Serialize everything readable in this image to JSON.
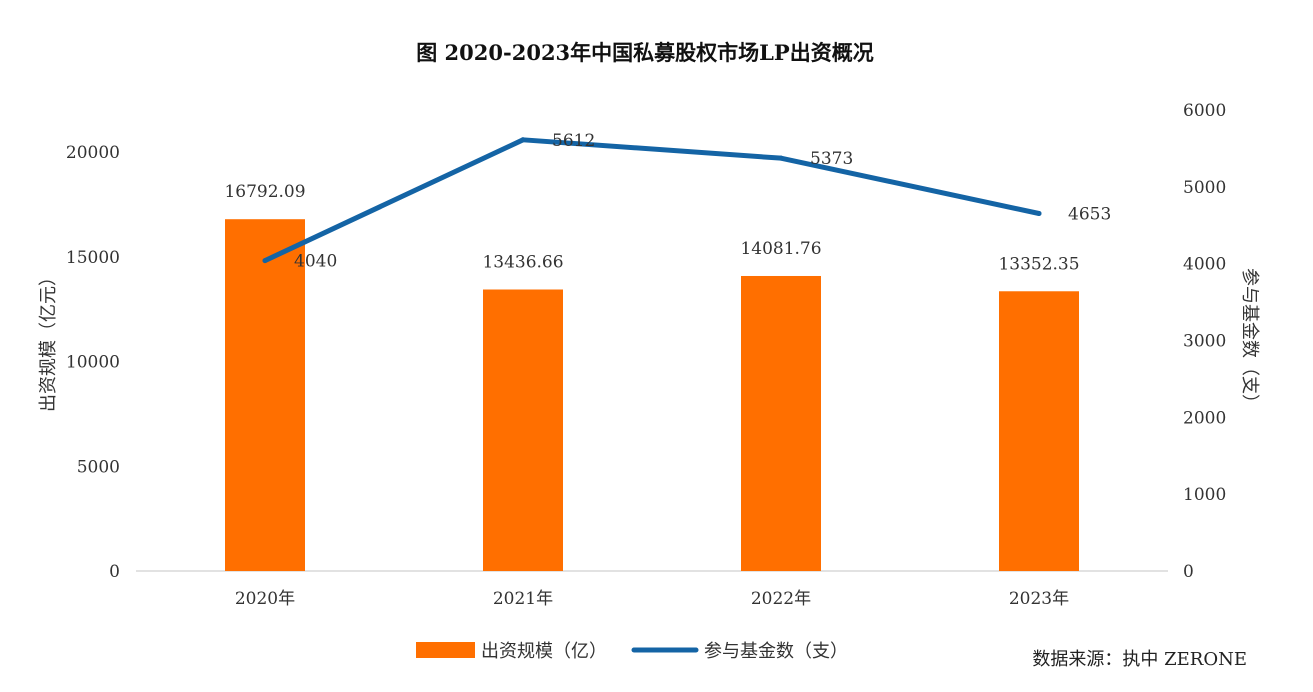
{
  "chart_data": {
    "type": "bar",
    "title": "图  2020-2023年中国私募股权市场LP出资概况",
    "categories": [
      "2020年",
      "2021年",
      "2022年",
      "2023年"
    ],
    "series": [
      {
        "name": "出资规模（亿）",
        "type": "bar",
        "axis": "left",
        "color": "#FF6F00",
        "values": [
          16792.09,
          13436.66,
          14081.76,
          13352.35
        ],
        "labels": [
          "16792.09",
          "13436.66",
          "14081.76",
          "13352.35"
        ]
      },
      {
        "name": "参与基金数（支）",
        "type": "line",
        "axis": "right",
        "color": "#1464A5",
        "values": [
          4040,
          5612,
          5373,
          4653
        ],
        "labels": [
          "4040",
          "5612",
          "5373",
          "4653"
        ]
      }
    ],
    "ylabel": "出资规模（亿元）",
    "ylabel_right": "参与基金数（支）",
    "ylim": [
      0,
      20000
    ],
    "ylim_right": [
      0,
      6000
    ],
    "yticks": [
      "0",
      "5000",
      "10000",
      "15000",
      "20000"
    ],
    "yticks_right": [
      "0",
      "1000",
      "2000",
      "3000",
      "4000",
      "5000",
      "6000"
    ],
    "grid": false,
    "legend": "bottom"
  },
  "source": "数据来源：执中 ZERONE"
}
